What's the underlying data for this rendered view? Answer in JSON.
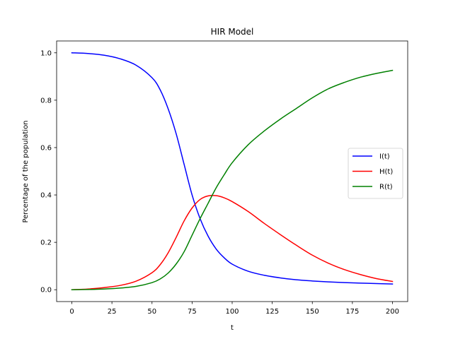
{
  "chart_data": {
    "type": "line",
    "title": "HIR Model",
    "xlabel": "t",
    "ylabel": "Percentage of the population",
    "xlim": [
      -9.5,
      209.5
    ],
    "ylim": [
      -0.05,
      1.05
    ],
    "xticks": [
      0,
      25,
      50,
      75,
      100,
      125,
      150,
      175,
      200
    ],
    "xtick_labels": [
      "0",
      "25",
      "50",
      "75",
      "100",
      "125",
      "150",
      "175",
      "200"
    ],
    "yticks": [
      0.0,
      0.2,
      0.4,
      0.6,
      0.8,
      1.0
    ],
    "ytick_labels": [
      "0.0",
      "0.2",
      "0.4",
      "0.6",
      "0.8",
      "1.0"
    ],
    "grid": false,
    "legend_position": "center-right",
    "x": [
      0,
      10,
      20,
      30,
      40,
      50,
      55,
      60,
      65,
      70,
      75,
      80,
      85,
      90,
      95,
      100,
      110,
      120,
      130,
      140,
      150,
      160,
      170,
      180,
      190,
      200
    ],
    "series": [
      {
        "name": "I(t)",
        "color": "#0000ff",
        "values": [
          1.0,
          0.997,
          0.99,
          0.975,
          0.948,
          0.895,
          0.845,
          0.765,
          0.66,
          0.53,
          0.4,
          0.3,
          0.226,
          0.172,
          0.135,
          0.108,
          0.078,
          0.061,
          0.05,
          0.042,
          0.037,
          0.033,
          0.03,
          0.028,
          0.026,
          0.024
        ]
      },
      {
        "name": "H(t)",
        "color": "#ff0000",
        "values": [
          0.0,
          0.003,
          0.009,
          0.018,
          0.036,
          0.072,
          0.105,
          0.155,
          0.22,
          0.29,
          0.345,
          0.381,
          0.396,
          0.397,
          0.388,
          0.372,
          0.33,
          0.28,
          0.233,
          0.188,
          0.146,
          0.112,
          0.085,
          0.064,
          0.047,
          0.035
        ]
      },
      {
        "name": "R(t)",
        "color": "#008000",
        "values": [
          0.0,
          0.001,
          0.003,
          0.007,
          0.014,
          0.03,
          0.045,
          0.07,
          0.108,
          0.16,
          0.23,
          0.3,
          0.365,
          0.43,
          0.485,
          0.536,
          0.612,
          0.67,
          0.72,
          0.765,
          0.81,
          0.848,
          0.875,
          0.897,
          0.913,
          0.926
        ]
      }
    ]
  }
}
